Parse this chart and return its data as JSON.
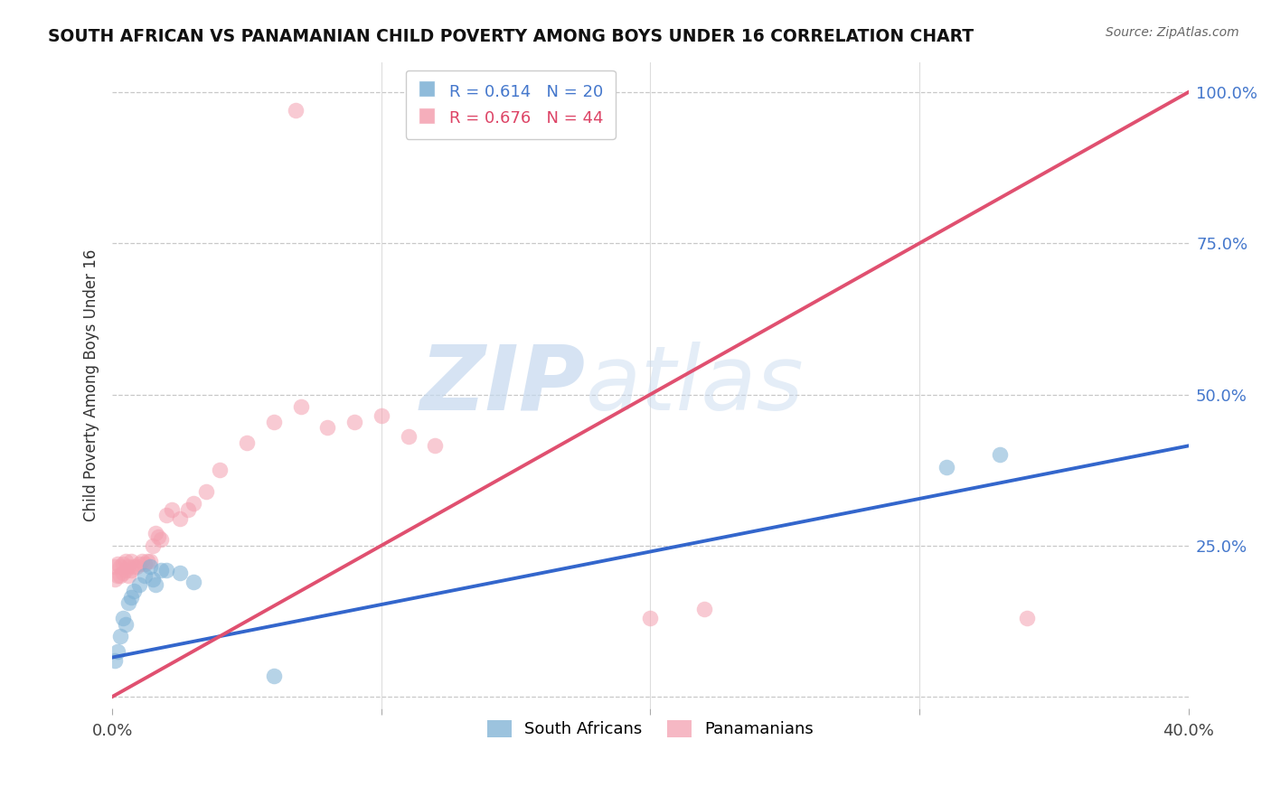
{
  "title": "SOUTH AFRICAN VS PANAMANIAN CHILD POVERTY AMONG BOYS UNDER 16 CORRELATION CHART",
  "source": "Source: ZipAtlas.com",
  "ylabel": "Child Poverty Among Boys Under 16",
  "xlim": [
    0.0,
    0.4
  ],
  "ylim": [
    -0.02,
    1.05
  ],
  "yticks": [
    0.0,
    0.25,
    0.5,
    0.75,
    1.0
  ],
  "ytick_labels": [
    "",
    "25.0%",
    "50.0%",
    "75.0%",
    "100.0%"
  ],
  "xticks": [
    0.0,
    0.1,
    0.2,
    0.3,
    0.4
  ],
  "xtick_labels": [
    "0.0%",
    "",
    "",
    "",
    "40.0%"
  ],
  "blue_R": "0.614",
  "blue_N": "20",
  "pink_R": "0.676",
  "pink_N": "44",
  "legend_label_blue": "South Africans",
  "legend_label_pink": "Panamanians",
  "blue_color": "#7bafd4",
  "pink_color": "#f4a0b0",
  "blue_line_color": "#3366cc",
  "pink_line_color": "#e05070",
  "watermark_zip": "ZIP",
  "watermark_atlas": "atlas",
  "blue_scatter_x": [
    0.001,
    0.002,
    0.003,
    0.004,
    0.005,
    0.006,
    0.007,
    0.008,
    0.01,
    0.012,
    0.014,
    0.015,
    0.016,
    0.018,
    0.02,
    0.025,
    0.03,
    0.06,
    0.31,
    0.33
  ],
  "blue_scatter_y": [
    0.06,
    0.075,
    0.1,
    0.13,
    0.12,
    0.155,
    0.165,
    0.175,
    0.185,
    0.2,
    0.215,
    0.195,
    0.185,
    0.21,
    0.21,
    0.205,
    0.19,
    0.035,
    0.38,
    0.4
  ],
  "pink_scatter_x": [
    0.001,
    0.001,
    0.002,
    0.002,
    0.003,
    0.003,
    0.004,
    0.004,
    0.005,
    0.005,
    0.006,
    0.006,
    0.007,
    0.007,
    0.008,
    0.009,
    0.01,
    0.011,
    0.012,
    0.013,
    0.014,
    0.015,
    0.016,
    0.017,
    0.018,
    0.02,
    0.022,
    0.025,
    0.028,
    0.03,
    0.035,
    0.04,
    0.05,
    0.06,
    0.07,
    0.08,
    0.09,
    0.1,
    0.11,
    0.12,
    0.2,
    0.22,
    0.34,
    0.068
  ],
  "pink_scatter_y": [
    0.195,
    0.215,
    0.2,
    0.22,
    0.2,
    0.215,
    0.205,
    0.22,
    0.21,
    0.225,
    0.2,
    0.215,
    0.21,
    0.225,
    0.215,
    0.215,
    0.22,
    0.225,
    0.22,
    0.225,
    0.225,
    0.25,
    0.27,
    0.265,
    0.26,
    0.3,
    0.31,
    0.295,
    0.31,
    0.32,
    0.34,
    0.375,
    0.42,
    0.455,
    0.48,
    0.445,
    0.455,
    0.465,
    0.43,
    0.415,
    0.13,
    0.145,
    0.13,
    0.97
  ],
  "blue_line_x0": 0.0,
  "blue_line_y0": 0.065,
  "blue_line_x1": 0.4,
  "blue_line_y1": 0.415,
  "pink_line_x0": 0.0,
  "pink_line_y0": 0.0,
  "pink_line_x1": 0.4,
  "pink_line_y1": 1.0
}
